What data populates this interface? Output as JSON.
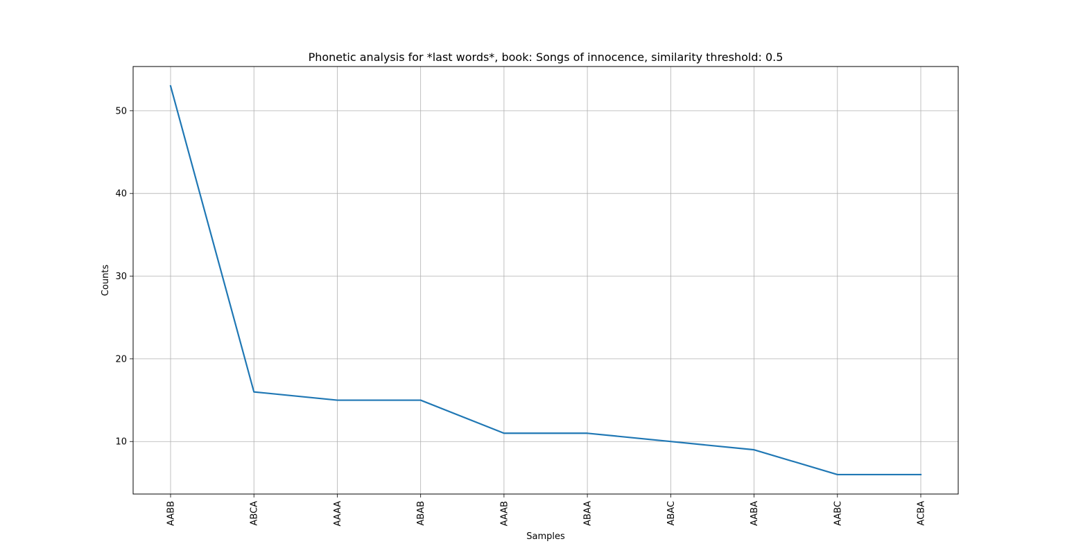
{
  "chart_data": {
    "type": "line",
    "title": "Phonetic analysis for *last words*, book: Songs of innocence, similarity threshold: 0.5",
    "xlabel": "Samples",
    "ylabel": "Counts",
    "categories": [
      "AABB",
      "ABCA",
      "AAAA",
      "ABAB",
      "AAAB",
      "ABAA",
      "ABAC",
      "AABA",
      "AABC",
      "ACBA"
    ],
    "values": [
      53,
      16,
      15,
      15,
      11,
      11,
      10,
      9,
      6,
      6
    ],
    "ylim": [
      3.65,
      55.35
    ],
    "yticks": [
      10,
      20,
      30,
      40,
      50
    ],
    "grid": true,
    "legend": "none",
    "color": "#1f77b4"
  }
}
